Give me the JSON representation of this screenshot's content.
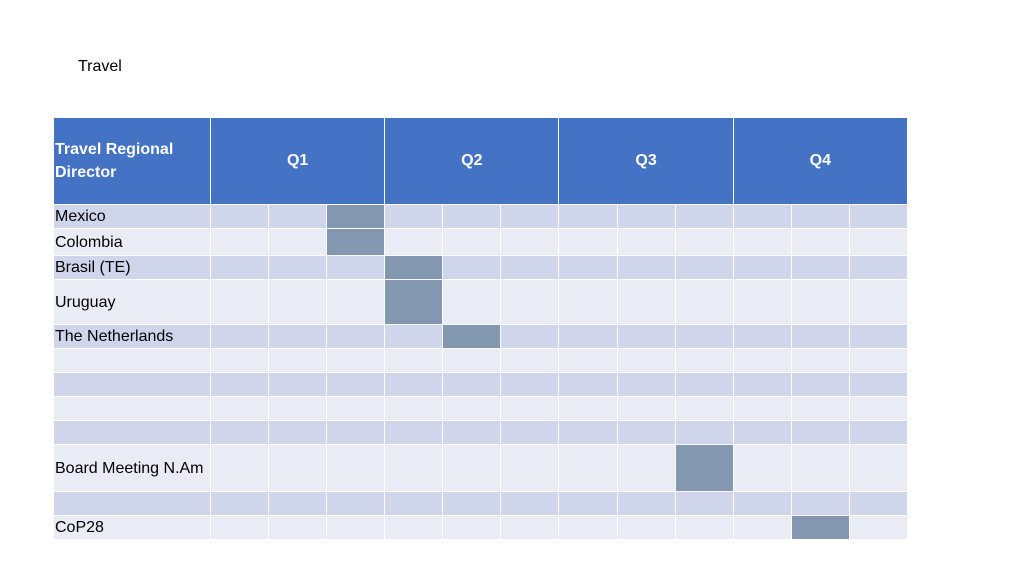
{
  "title": "Travel",
  "table": {
    "header_label": "Travel Regional Director",
    "quarters": [
      "Q1",
      "Q2",
      "Q3",
      "Q4"
    ],
    "weeks_per_quarter": 3,
    "rows": [
      {
        "label": "Mexico",
        "active": [
          2
        ]
      },
      {
        "label": "Colombia",
        "active": [
          2
        ]
      },
      {
        "label": "Brasil (TE)",
        "active": [
          3
        ]
      },
      {
        "label": "Uruguay",
        "active": [
          3
        ]
      },
      {
        "label": "The Netherlands",
        "active": [
          4
        ]
      },
      {
        "label": "",
        "active": []
      },
      {
        "label": "",
        "active": []
      },
      {
        "label": "",
        "active": []
      },
      {
        "label": "",
        "active": []
      },
      {
        "label": "Board Meeting N.Am",
        "active": [
          8
        ]
      },
      {
        "label": "",
        "active": []
      },
      {
        "label": "CoP28",
        "active": [
          10
        ]
      }
    ]
  },
  "colors": {
    "header": "#4472c4",
    "row_dark": "#cfd5ea",
    "row_light": "#e9ebf5",
    "highlight": "#8497b0"
  }
}
